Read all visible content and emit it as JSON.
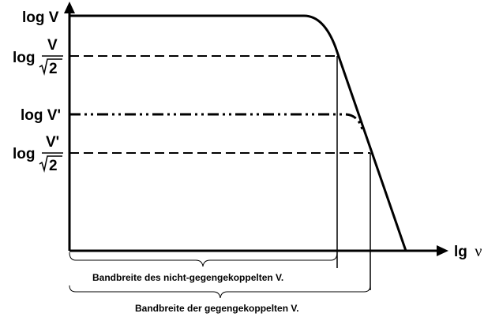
{
  "labels": {
    "log_v": "log V",
    "log_word": "log",
    "v": "V",
    "sqrt2": "2",
    "log_v_prime": "log V'",
    "v_prime": "V'",
    "x_axis_prefix": "lg",
    "x_axis_symbol": "ν",
    "bandwidth_open_loop": "Bandbreite des nicht-gegengekoppelten V.",
    "bandwidth_feedback": "Bandbreite der gegengekoppelten V."
  }
}
